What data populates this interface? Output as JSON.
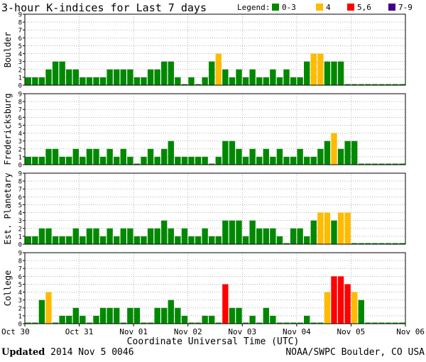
{
  "colors": {
    "quiet": "#008800",
    "active": "#ffbb00",
    "storm": "#ff0000",
    "severe": "#440088",
    "axis": "#000000",
    "grid": "#888888"
  },
  "footer": {
    "updated_label": "Updated",
    "updated_value": "2014 Nov  5 0046",
    "source": "NOAA/SWPC Boulder, CO USA"
  },
  "chart_data": {
    "type": "bar",
    "title": "3-hour K-indices for Last 7 days",
    "xlabel": "Coordinate Universal Time (UTC)",
    "ylim": [
      0,
      9
    ],
    "yticks": [
      0,
      1,
      2,
      3,
      4,
      5,
      6,
      7,
      8,
      9
    ],
    "grid": true,
    "legend_position": "top-right",
    "legend": {
      "title": "Legend:",
      "entries": [
        {
          "label": "0-3",
          "color": "#008800"
        },
        {
          "label": "4",
          "color": "#ffbb00"
        },
        {
          "label": "5,6",
          "color": "#ff0000"
        },
        {
          "label": "7-9",
          "color": "#440088"
        }
      ]
    },
    "x_ticks": [
      "Oct 30",
      "Oct 31",
      "Nov 01",
      "Nov 02",
      "Nov 03",
      "Nov 04",
      "Nov 05",
      "Nov 06"
    ],
    "interval_hours": 3,
    "panels": [
      {
        "name": "Boulder",
        "values": [
          1,
          1,
          1,
          2,
          3,
          3,
          2,
          2,
          1,
          1,
          1,
          1,
          2,
          2,
          2,
          2,
          1,
          1,
          2,
          2,
          3,
          3,
          1,
          0,
          1,
          0,
          1,
          3,
          4,
          2,
          1,
          2,
          1,
          2,
          1,
          1,
          2,
          1,
          2,
          1,
          1,
          3,
          4,
          4,
          3,
          3,
          3,
          0,
          0,
          0,
          0,
          0,
          0,
          0,
          0,
          0
        ]
      },
      {
        "name": "Fredericksburg",
        "values": [
          1,
          1,
          1,
          2,
          2,
          1,
          1,
          2,
          1,
          2,
          2,
          1,
          2,
          1,
          2,
          1,
          0,
          1,
          2,
          1,
          2,
          3,
          1,
          1,
          1,
          1,
          1,
          0,
          1,
          3,
          3,
          2,
          1,
          2,
          1,
          2,
          1,
          2,
          1,
          1,
          2,
          1,
          1,
          2,
          3,
          4,
          2,
          3,
          3,
          0,
          0,
          0,
          0,
          0,
          0,
          0
        ]
      },
      {
        "name": "Est. Planetary",
        "values": [
          1,
          1,
          2,
          2,
          1,
          1,
          1,
          2,
          1,
          2,
          2,
          1,
          2,
          1,
          2,
          2,
          1,
          1,
          2,
          2,
          3,
          2,
          1,
          2,
          1,
          1,
          2,
          1,
          1,
          3,
          3,
          3,
          1,
          3,
          2,
          2,
          2,
          1,
          0,
          2,
          2,
          1,
          3,
          4,
          4,
          3,
          4,
          4,
          0,
          0,
          0,
          0,
          0,
          0,
          0,
          0
        ]
      },
      {
        "name": "College",
        "values": [
          0,
          0,
          3,
          4,
          0,
          1,
          1,
          2,
          1,
          0,
          1,
          2,
          2,
          2,
          0,
          2,
          2,
          0,
          0,
          2,
          2,
          3,
          2,
          1,
          0,
          0,
          1,
          1,
          0,
          5,
          2,
          2,
          0,
          1,
          0,
          2,
          1,
          0,
          0,
          0,
          0,
          1,
          0,
          0,
          4,
          6,
          6,
          5,
          4,
          3,
          0,
          0,
          0,
          0,
          0,
          0
        ]
      }
    ]
  }
}
